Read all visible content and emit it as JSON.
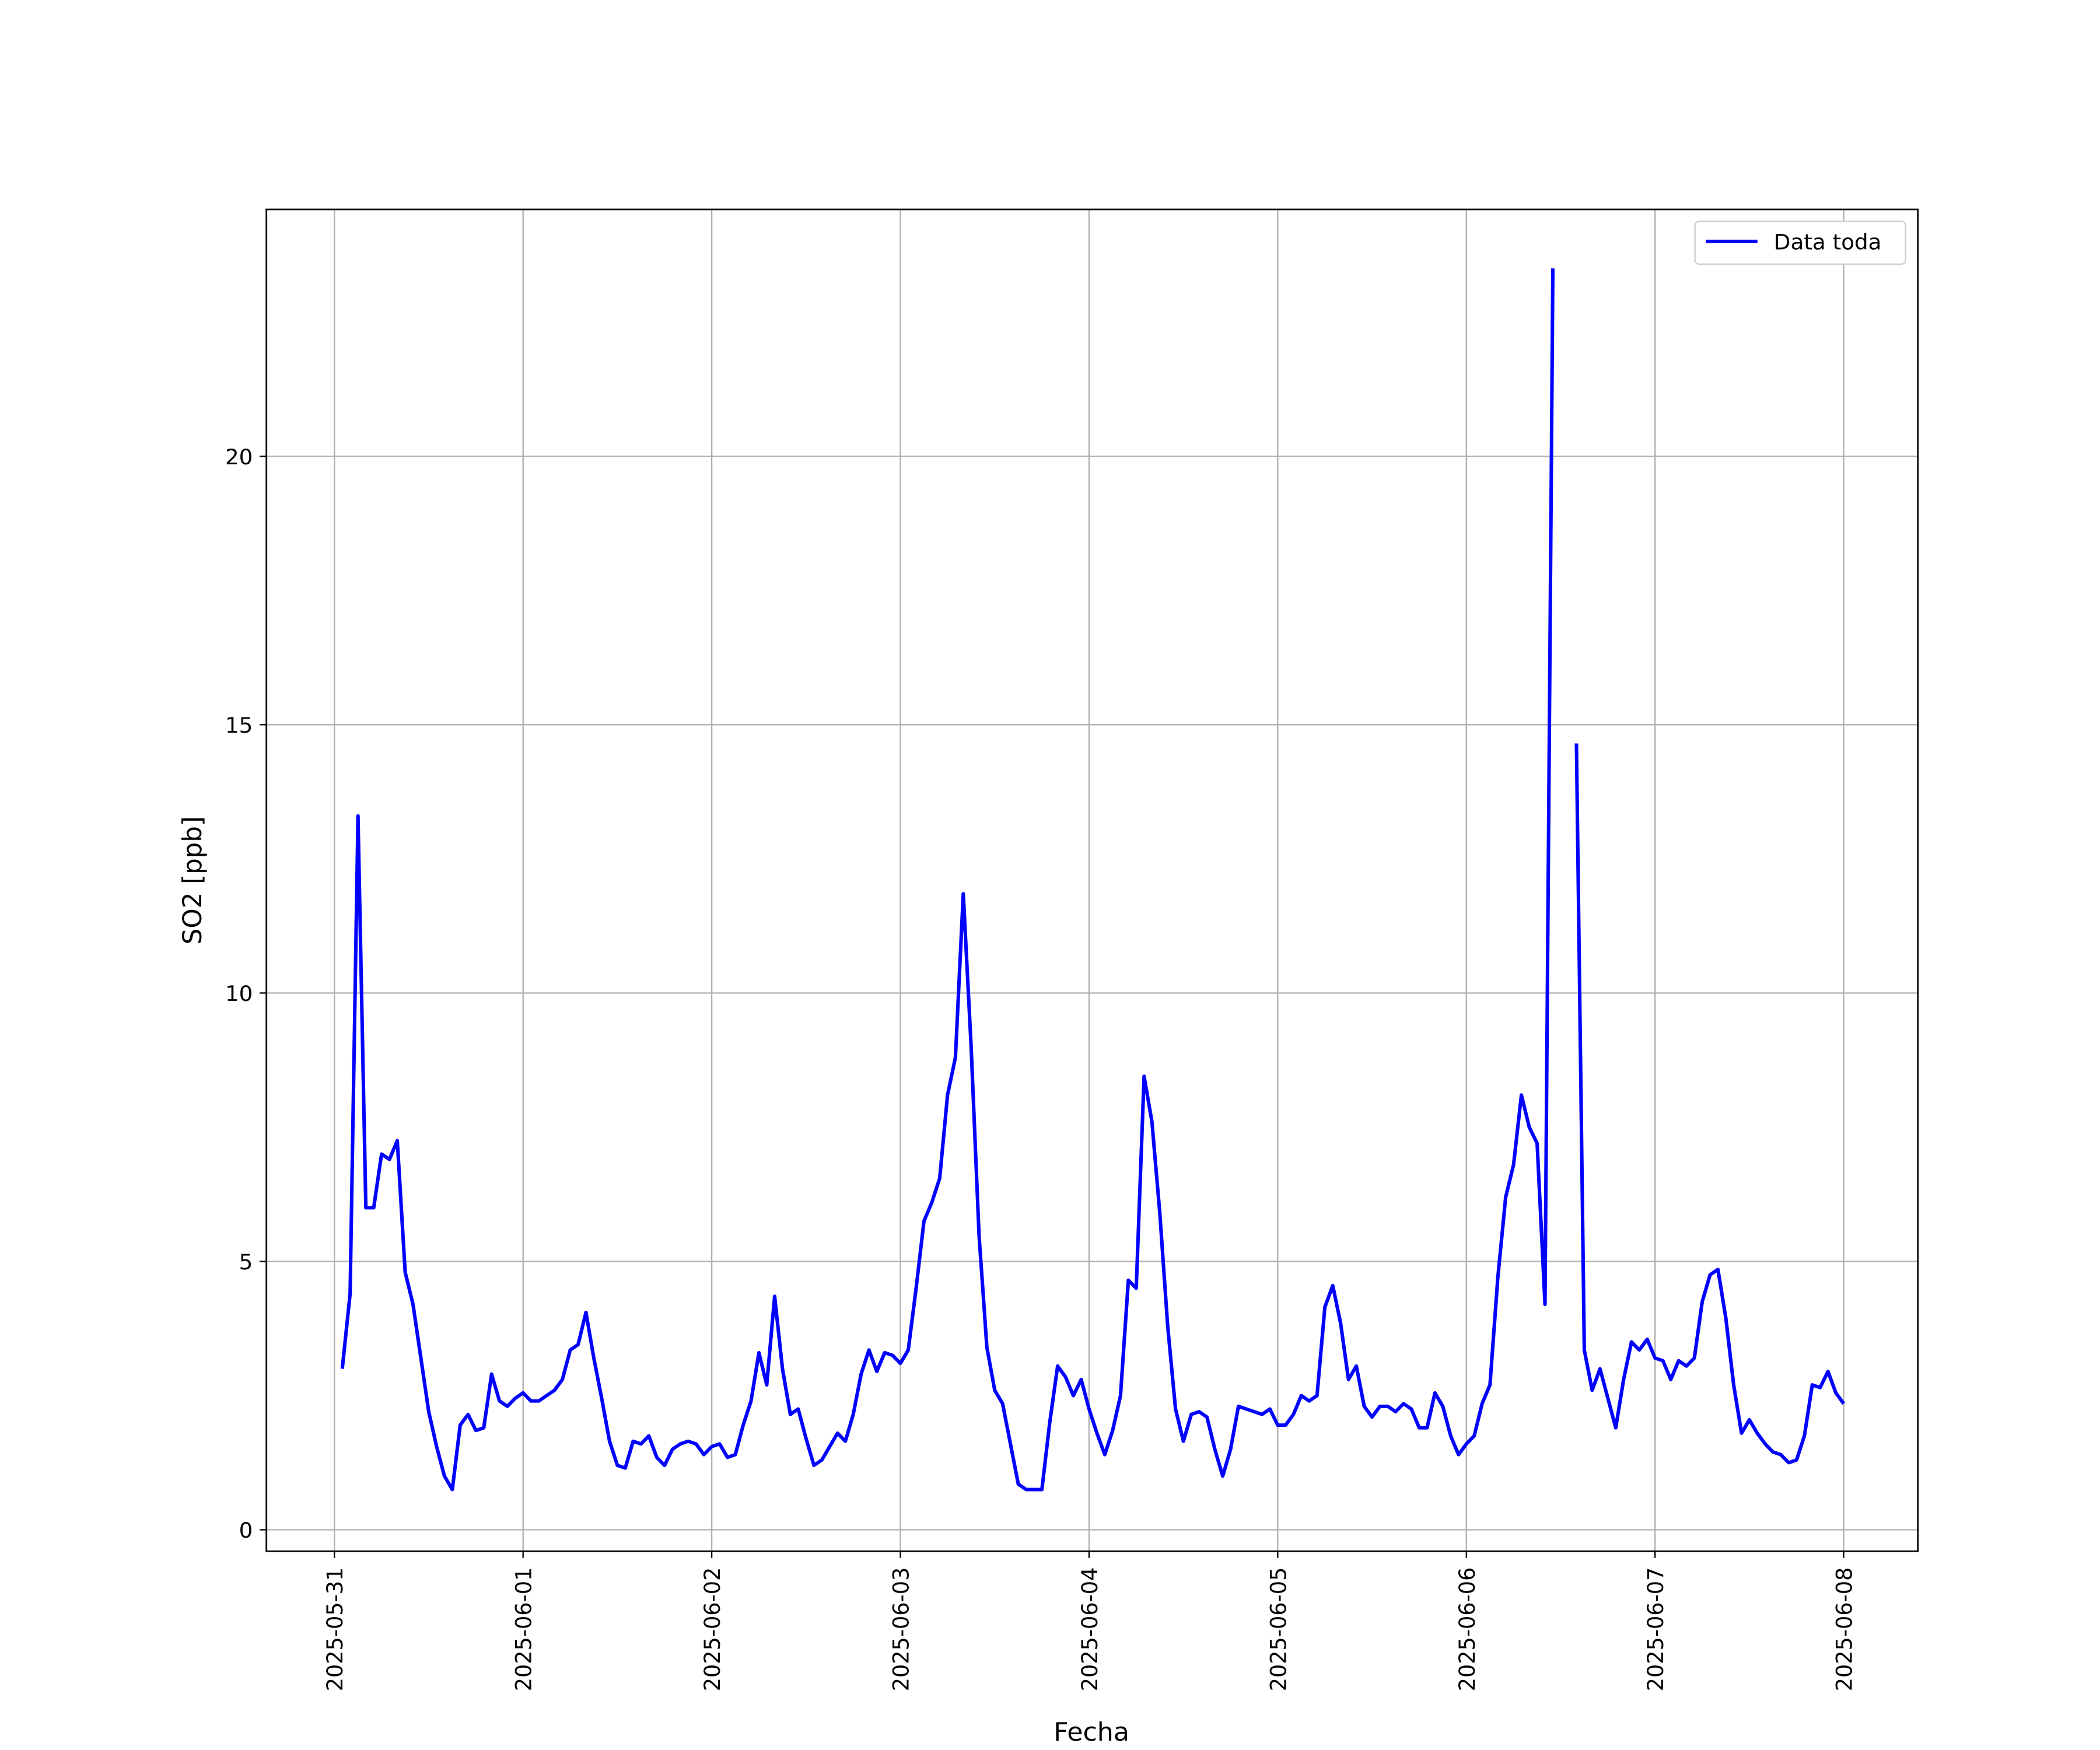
{
  "chart_data": {
    "type": "line",
    "xlabel": "Fecha",
    "ylabel": "SO2 [ppb]",
    "xlim": [
      "2025-05-30T15:21",
      "2025-06-08T09:26"
    ],
    "ylim": [
      -0.4,
      24.6
    ],
    "xticks": [
      "2025-05-31",
      "2025-06-01",
      "2025-06-02",
      "2025-06-03",
      "2025-06-04",
      "2025-06-05",
      "2025-06-06",
      "2025-06-07",
      "2025-06-08"
    ],
    "yticks": [
      0,
      5,
      10,
      15,
      20
    ],
    "grid": true,
    "legend": "upper right",
    "x": [
      "2025-05-31T01:00",
      "2025-05-31T02:00",
      "2025-05-31T03:00",
      "2025-05-31T04:00",
      "2025-05-31T05:00",
      "2025-05-31T06:00",
      "2025-05-31T07:00",
      "2025-05-31T08:00",
      "2025-05-31T09:00",
      "2025-05-31T10:00",
      "2025-05-31T11:00",
      "2025-05-31T12:00",
      "2025-05-31T13:00",
      "2025-05-31T14:00",
      "2025-05-31T15:00",
      "2025-05-31T16:00",
      "2025-05-31T17:00",
      "2025-05-31T18:00",
      "2025-05-31T19:00",
      "2025-05-31T20:00",
      "2025-05-31T21:00",
      "2025-05-31T22:00",
      "2025-05-31T23:00",
      "2025-06-01T00:00",
      "2025-06-01T01:00",
      "2025-06-01T02:00",
      "2025-06-01T03:00",
      "2025-06-01T04:00",
      "2025-06-01T05:00",
      "2025-06-01T06:00",
      "2025-06-01T07:00",
      "2025-06-01T08:00",
      "2025-06-01T09:00",
      "2025-06-01T10:00",
      "2025-06-01T11:00",
      "2025-06-01T12:00",
      "2025-06-01T13:00",
      "2025-06-01T14:00",
      "2025-06-01T15:00",
      "2025-06-01T16:00",
      "2025-06-01T17:00",
      "2025-06-01T18:00",
      "2025-06-01T19:00",
      "2025-06-01T20:00",
      "2025-06-01T21:00",
      "2025-06-01T22:00",
      "2025-06-01T23:00",
      "2025-06-02T00:00",
      "2025-06-02T01:00",
      "2025-06-02T02:00",
      "2025-06-02T03:00",
      "2025-06-02T04:00",
      "2025-06-02T05:00",
      "2025-06-02T06:00",
      "2025-06-02T07:00",
      "2025-06-02T08:00",
      "2025-06-02T09:00",
      "2025-06-02T10:00",
      "2025-06-02T11:00",
      "2025-06-02T12:00",
      "2025-06-02T13:00",
      "2025-06-02T14:00",
      "2025-06-02T15:00",
      "2025-06-02T16:00",
      "2025-06-02T17:00",
      "2025-06-02T18:00",
      "2025-06-02T19:00",
      "2025-06-02T20:00",
      "2025-06-02T21:00",
      "2025-06-02T22:00",
      "2025-06-02T23:00",
      "2025-06-03T00:00",
      "2025-06-03T01:00",
      "2025-06-03T02:00",
      "2025-06-03T03:00",
      "2025-06-03T04:00",
      "2025-06-03T05:00",
      "2025-06-03T06:00",
      "2025-06-03T07:00",
      "2025-06-03T08:00",
      "2025-06-03T09:00",
      "2025-06-03T10:00",
      "2025-06-03T11:00",
      "2025-06-03T12:00",
      "2025-06-03T13:00",
      "2025-06-03T14:00",
      "2025-06-03T15:00",
      "2025-06-03T16:00",
      "2025-06-03T17:00",
      "2025-06-03T18:00",
      "2025-06-03T19:00",
      "2025-06-03T20:00",
      "2025-06-03T21:00",
      "2025-06-03T22:00",
      "2025-06-03T23:00",
      "2025-06-04T00:00",
      "2025-06-04T01:00",
      "2025-06-04T02:00",
      "2025-06-04T03:00",
      "2025-06-04T04:00",
      "2025-06-04T05:00",
      "2025-06-04T06:00",
      "2025-06-04T07:00",
      "2025-06-04T08:00",
      "2025-06-04T09:00",
      "2025-06-04T10:00",
      "2025-06-04T11:00",
      "2025-06-04T12:00",
      "2025-06-04T13:00",
      "2025-06-04T14:00",
      "2025-06-04T15:00",
      "2025-06-04T16:00",
      "2025-06-04T17:00",
      "2025-06-04T18:00",
      "2025-06-04T19:00",
      "2025-06-04T20:00",
      "2025-06-04T21:00",
      "2025-06-04T22:00",
      "2025-06-04T23:00",
      "2025-06-05T00:00",
      "2025-06-05T01:00",
      "2025-06-05T02:00",
      "2025-06-05T03:00",
      "2025-06-05T04:00",
      "2025-06-05T05:00",
      "2025-06-05T06:00",
      "2025-06-05T07:00",
      "2025-06-05T08:00",
      "2025-06-05T09:00",
      "2025-06-05T10:00",
      "2025-06-05T11:00",
      "2025-06-05T12:00",
      "2025-06-05T13:00",
      "2025-06-05T14:00",
      "2025-06-05T15:00",
      "2025-06-05T16:00",
      "2025-06-05T17:00",
      "2025-06-05T18:00",
      "2025-06-05T19:00",
      "2025-06-05T20:00",
      "2025-06-05T21:00",
      "2025-06-05T22:00",
      "2025-06-05T23:00",
      "2025-06-06T00:00",
      "2025-06-06T01:00",
      "2025-06-06T02:00",
      "2025-06-06T03:00",
      "2025-06-06T04:00",
      "2025-06-06T05:00",
      "2025-06-06T06:00",
      "2025-06-06T07:00",
      "2025-06-06T08:00",
      "2025-06-06T09:00",
      "2025-06-06T10:00",
      "2025-06-06T11:00",
      "2025-06-06T12:00",
      "2025-06-06T13:00",
      "2025-06-06T14:00",
      "2025-06-06T15:00",
      "2025-06-06T16:00",
      "2025-06-06T17:00",
      "2025-06-06T18:00",
      "2025-06-06T19:00",
      "2025-06-06T20:00",
      "2025-06-06T21:00",
      "2025-06-06T22:00",
      "2025-06-06T23:00",
      "2025-06-07T00:00",
      "2025-06-07T01:00",
      "2025-06-07T02:00",
      "2025-06-07T03:00",
      "2025-06-07T04:00",
      "2025-06-07T05:00",
      "2025-06-07T06:00",
      "2025-06-07T07:00",
      "2025-06-07T08:00",
      "2025-06-07T09:00",
      "2025-06-07T10:00",
      "2025-06-07T11:00",
      "2025-06-07T12:00",
      "2025-06-07T13:00",
      "2025-06-07T14:00",
      "2025-06-07T15:00",
      "2025-06-07T16:00",
      "2025-06-07T17:00",
      "2025-06-07T18:00",
      "2025-06-07T19:00",
      "2025-06-07T20:00",
      "2025-06-07T21:00",
      "2025-06-07T22:00",
      "2025-06-07T23:00",
      "2025-06-08T00:00"
    ],
    "series": [
      {
        "name": "Data toda",
        "color": "#0000ff",
        "values": [
          3.0,
          4.4,
          13.3,
          6.0,
          6.0,
          7.0,
          6.9,
          7.25,
          4.8,
          4.2,
          3.2,
          2.2,
          1.55,
          1.0,
          0.75,
          1.95,
          2.15,
          1.85,
          1.9,
          2.9,
          2.4,
          2.3,
          2.45,
          2.55,
          2.4,
          2.4,
          2.5,
          2.6,
          2.8,
          3.35,
          3.45,
          4.05,
          3.2,
          2.45,
          1.65,
          1.2,
          1.15,
          1.65,
          1.6,
          1.75,
          1.35,
          1.2,
          1.5,
          1.6,
          1.65,
          1.6,
          1.4,
          1.55,
          1.6,
          1.35,
          1.4,
          1.95,
          2.4,
          3.3,
          2.7,
          4.35,
          3.0,
          2.15,
          2.25,
          1.7,
          1.2,
          1.3,
          1.55,
          1.8,
          1.65,
          2.15,
          2.9,
          3.35,
          2.95,
          3.3,
          3.25,
          3.1,
          3.35,
          4.5,
          5.75,
          6.1,
          6.55,
          8.1,
          8.8,
          11.85,
          9.0,
          5.5,
          3.4,
          2.6,
          2.35,
          1.6,
          0.85,
          0.75,
          0.75,
          0.75,
          2.0,
          3.05,
          2.85,
          2.5,
          2.8,
          2.25,
          1.8,
          1.4,
          1.85,
          2.5,
          4.65,
          4.5,
          8.45,
          7.6,
          5.9,
          3.8,
          2.25,
          1.65,
          2.15,
          2.2,
          2.1,
          1.5,
          1.0,
          1.5,
          2.3,
          2.25,
          2.2,
          2.15,
          2.25,
          1.95,
          1.95,
          2.15,
          2.5,
          2.4,
          2.5,
          4.15,
          4.55,
          3.85,
          2.8,
          3.05,
          2.3,
          2.1,
          2.3,
          2.3,
          2.2,
          2.35,
          2.25,
          1.9,
          1.9,
          2.55,
          2.3,
          1.75,
          1.4,
          1.6,
          1.75,
          2.35,
          2.7,
          4.7,
          6.2,
          6.8,
          8.1,
          7.5,
          7.2,
          4.2,
          23.5,
          null,
          null,
          14.65,
          3.35,
          2.6,
          3.0,
          2.45,
          1.9,
          2.8,
          3.5,
          3.35,
          3.55,
          3.2,
          3.15,
          2.8,
          3.15,
          3.05,
          3.2,
          4.25,
          4.75,
          4.85,
          3.95,
          2.7,
          1.8,
          2.05,
          1.8,
          1.6,
          1.45,
          1.4,
          1.25,
          1.3,
          1.75,
          2.7,
          2.65,
          2.95,
          2.55,
          2.35
        ]
      }
    ]
  }
}
